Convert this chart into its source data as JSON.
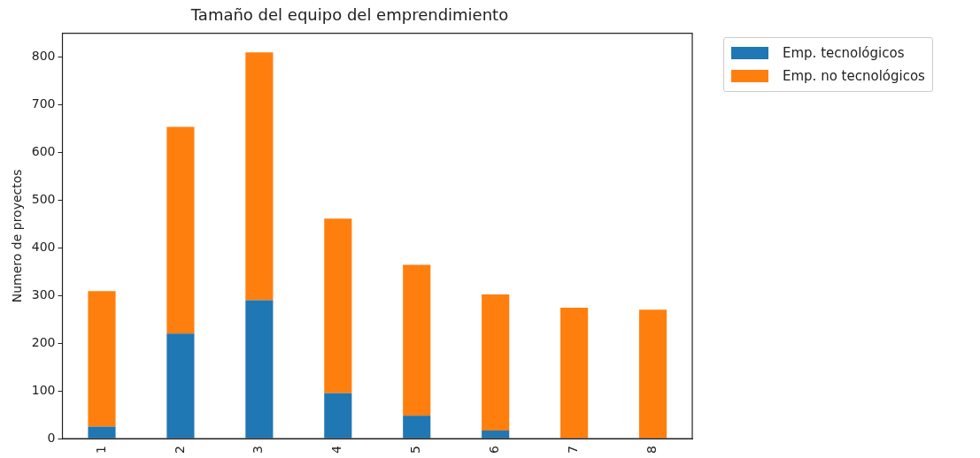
{
  "chart_data": {
    "type": "bar",
    "title": "Tamaño del equipo del emprendimiento",
    "ylabel": "Numero de proyectos",
    "categories": [
      "1",
      "2",
      "3",
      "4",
      "5",
      "6",
      "7",
      "8"
    ],
    "stacked": true,
    "series": [
      {
        "name": "Emp. tecnológicos",
        "color": "#1f77b4",
        "values": [
          25,
          220,
          290,
          95,
          48,
          17,
          0,
          0
        ]
      },
      {
        "name": "Emp. no tecnológicos",
        "color": "#ff7f0e",
        "values": [
          284,
          433,
          519,
          366,
          316,
          285,
          274,
          270
        ]
      }
    ],
    "ylim": [
      0,
      849
    ],
    "yticks": [
      0,
      100,
      200,
      300,
      400,
      500,
      600,
      700,
      800
    ],
    "grid": false,
    "legend": "top right"
  }
}
